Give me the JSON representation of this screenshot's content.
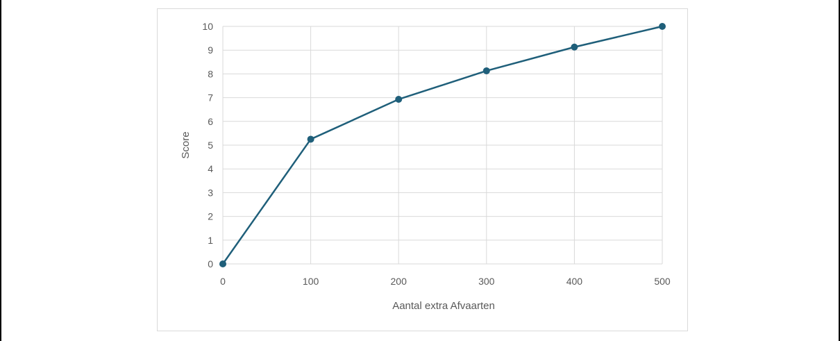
{
  "chart_data": {
    "type": "line",
    "title": "",
    "xlabel": "Aantal extra  Afvaarten",
    "ylabel": "Score",
    "x": [
      0,
      100,
      200,
      300,
      400,
      500
    ],
    "series": [
      {
        "values": [
          0,
          5.25,
          6.93,
          8.13,
          9.13,
          10
        ]
      }
    ],
    "xlim": [
      0,
      500
    ],
    "ylim": [
      0,
      10
    ],
    "xticks": [
      "0",
      "100",
      "200",
      "300",
      "400",
      "500"
    ],
    "yticks": [
      "0",
      "1",
      "2",
      "3",
      "4",
      "5",
      "6",
      "7",
      "8",
      "9",
      "10"
    ],
    "grid": true,
    "legend": "none",
    "colors": {
      "series": "#1f5f7a",
      "grid": "#d9d9d9",
      "text": "#595959",
      "frame": "#d9d9d9"
    }
  }
}
